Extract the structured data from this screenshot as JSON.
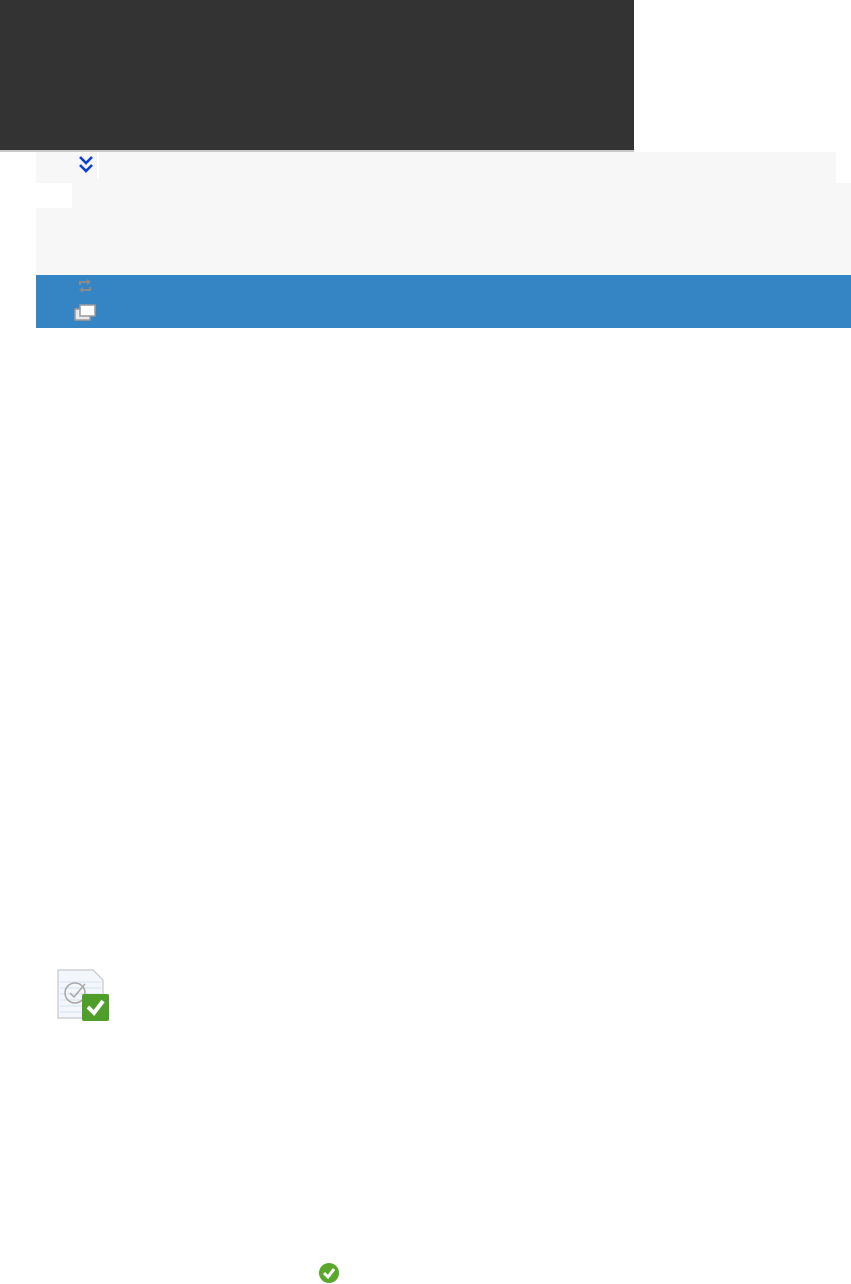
{
  "colors": {
    "header_bg": "#333333",
    "toolbar_bg": "#f7f7f7",
    "selection_bg": "#3584c4",
    "expand_icon": "#0a3fd6",
    "success_green": "#5aa82a"
  },
  "icons": {
    "expand": "double-chevron-down-icon",
    "sync": "sync-icon",
    "windows": "windows-icon",
    "document_check": "document-check-icon",
    "status_ok": "check-circle-icon"
  }
}
